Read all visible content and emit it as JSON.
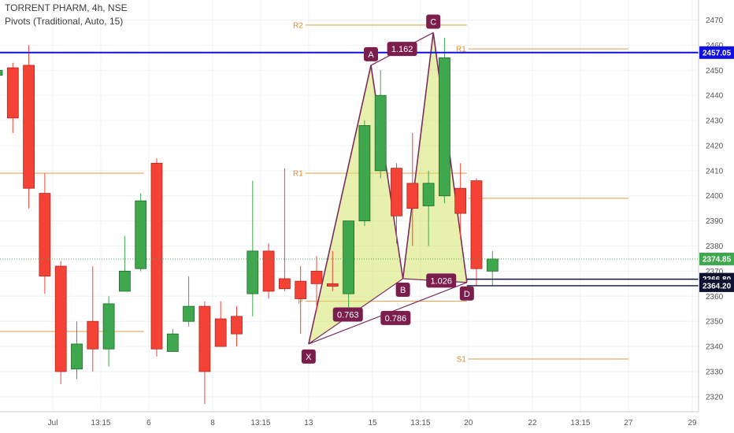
{
  "header": {
    "symbol_line": "TORRENT PHARM, 4h, NSE",
    "indicator_line": "Pivots (Traditional, Auto, 15)"
  },
  "colors": {
    "bull": "#3fa74d",
    "bull_edge": "#1e6b2a",
    "bear": "#f44336",
    "bear_edge": "#b0271d",
    "pattern_stroke": "#7b2c5f",
    "pattern_fill": "#d6e46a",
    "label_bg": "#7b1e4e",
    "pivot": "#e0892b",
    "blue_line": "#1010e0",
    "current_price": "#3fa74d"
  },
  "chart_data": {
    "type": "candlestick",
    "symbol": "TORRENT PHARM",
    "timeframe": "4h",
    "exchange": "NSE",
    "ylim": [
      2314,
      2478
    ],
    "y_ticks": [
      2320,
      2330,
      2340,
      2350,
      2360,
      2370,
      2380,
      2390,
      2400,
      2410,
      2420,
      2430,
      2440,
      2450,
      2460,
      2470
    ],
    "x_ticks": [
      {
        "i": 3.5,
        "label": "Jul"
      },
      {
        "i": 6.5,
        "label": "13:15"
      },
      {
        "i": 9.5,
        "label": "6"
      },
      {
        "i": 13.5,
        "label": "8"
      },
      {
        "i": 16.5,
        "label": "13:15"
      },
      {
        "i": 19.5,
        "label": "13"
      },
      {
        "i": 23.5,
        "label": "15"
      },
      {
        "i": 26.5,
        "label": "13:15"
      },
      {
        "i": 29.5,
        "label": "20"
      },
      {
        "i": 33.5,
        "label": "22"
      },
      {
        "i": 36.5,
        "label": "13:15"
      },
      {
        "i": 39.5,
        "label": "27"
      },
      {
        "i": 43.5,
        "label": "29"
      }
    ],
    "candles": [
      {
        "o": 2448,
        "h": 2455,
        "l": 2445,
        "c": 2450
      },
      {
        "o": 2451,
        "h": 2453,
        "l": 2425,
        "c": 2431
      },
      {
        "o": 2452,
        "h": 2460,
        "l": 2395,
        "c": 2403
      },
      {
        "o": 2401,
        "h": 2409,
        "l": 2361,
        "c": 2368
      },
      {
        "o": 2372,
        "h": 2374,
        "l": 2325,
        "c": 2330
      },
      {
        "o": 2331,
        "h": 2350,
        "l": 2327,
        "c": 2341
      },
      {
        "o": 2350,
        "h": 2372,
        "l": 2330,
        "c": 2339
      },
      {
        "o": 2339,
        "h": 2360,
        "l": 2332,
        "c": 2357
      },
      {
        "o": 2362,
        "h": 2384,
        "l": 2362,
        "c": 2370
      },
      {
        "o": 2371,
        "h": 2401,
        "l": 2370,
        "c": 2398
      },
      {
        "o": 2413,
        "h": 2415,
        "l": 2336,
        "c": 2339
      },
      {
        "o": 2338,
        "h": 2347,
        "l": 2338,
        "c": 2345
      },
      {
        "o": 2350,
        "h": 2368,
        "l": 2348,
        "c": 2356
      },
      {
        "o": 2356,
        "h": 2358,
        "l": 2317,
        "c": 2330
      },
      {
        "o": 2351,
        "h": 2358,
        "l": 2340,
        "c": 2340
      },
      {
        "o": 2352,
        "h": 2356,
        "l": 2340,
        "c": 2345
      },
      {
        "o": 2361,
        "h": 2406,
        "l": 2352,
        "c": 2378
      },
      {
        "o": 2378,
        "h": 2381,
        "l": 2359,
        "c": 2362
      },
      {
        "o": 2367,
        "h": 2411,
        "l": 2362,
        "c": 2363
      },
      {
        "o": 2366,
        "h": 2372,
        "l": 2345,
        "c": 2359
      },
      {
        "o": 2370,
        "h": 2376,
        "l": 2354,
        "c": 2365
      },
      {
        "o": 2365,
        "h": 2378,
        "l": 2362,
        "c": 2364
      },
      {
        "o": 2361,
        "h": 2390,
        "l": 2350,
        "c": 2390
      },
      {
        "o": 2390,
        "h": 2430,
        "l": 2388,
        "c": 2428
      },
      {
        "o": 2410,
        "h": 2450,
        "l": 2407,
        "c": 2440
      },
      {
        "o": 2411,
        "h": 2413,
        "l": 2381,
        "c": 2392
      },
      {
        "o": 2405,
        "h": 2425,
        "l": 2380,
        "c": 2395
      },
      {
        "o": 2396,
        "h": 2410,
        "l": 2380,
        "c": 2405
      },
      {
        "o": 2400,
        "h": 2463,
        "l": 2397,
        "c": 2455
      },
      {
        "o": 2403,
        "h": 2413,
        "l": 2383,
        "c": 2393
      },
      {
        "o": 2406,
        "h": 2407,
        "l": 2364,
        "c": 2371
      },
      {
        "o": 2370,
        "h": 2378,
        "l": 2364,
        "c": 2374.85
      }
    ],
    "pattern": {
      "name": "Cypher / XABCD harmonic",
      "points": [
        {
          "label": "X",
          "i": 19.5,
          "price": 2341
        },
        {
          "label": "A",
          "i": 23.4,
          "price": 2452
        },
        {
          "label": "B",
          "i": 25.4,
          "price": 2367
        },
        {
          "label": "C",
          "i": 27.3,
          "price": 2465
        },
        {
          "label": "D",
          "i": 29.4,
          "price": 2365.5
        }
      ],
      "ratios": [
        {
          "label": "1.162",
          "from": "A",
          "to": "C"
        },
        {
          "label": "0.763",
          "from": "X",
          "to": "B"
        },
        {
          "label": "0.786",
          "from": "X",
          "to": "D"
        },
        {
          "label": "1.026",
          "from": "B",
          "to": "D"
        }
      ]
    },
    "pivots": [
      {
        "label": "R2",
        "price": 2468,
        "i0": 19.3,
        "i1": 29.4
      },
      {
        "label": "R1",
        "price": 2458.5,
        "i0": 29.5,
        "i1": 39.5
      },
      {
        "label": "P",
        "price": 2409,
        "i0": -1,
        "i1": 9.2
      },
      {
        "label": "R1",
        "price": 2409,
        "i0": 19.3,
        "i1": 29.4
      },
      {
        "label": "P",
        "price": 2399,
        "i0": 29.5,
        "i1": 39.5
      },
      {
        "label": "S1",
        "price": 2346,
        "i0": -1,
        "i1": 9.2
      },
      {
        "label": "P",
        "price": 2358,
        "i0": 19.3,
        "i1": 29.4
      },
      {
        "label": "S1",
        "price": 2335,
        "i0": 29.5,
        "i1": 39.5
      }
    ],
    "horizontal_line": 2457.05,
    "current_price": 2374.85,
    "price_tags": [
      {
        "label": "2457.05",
        "price": 2457.05,
        "bg": "#1010e0",
        "fg": "#ffffff"
      },
      {
        "label": "2374.85",
        "price": 2374.85,
        "bg": "#3fa74d",
        "fg": "#ffffff"
      },
      {
        "label": "2366.80",
        "price": 2366.8,
        "bg": "#0d1330",
        "fg": "#ffffff"
      },
      {
        "label": "2364.20",
        "price": 2364.2,
        "bg": "#0d1330",
        "fg": "#ffffff"
      }
    ]
  }
}
